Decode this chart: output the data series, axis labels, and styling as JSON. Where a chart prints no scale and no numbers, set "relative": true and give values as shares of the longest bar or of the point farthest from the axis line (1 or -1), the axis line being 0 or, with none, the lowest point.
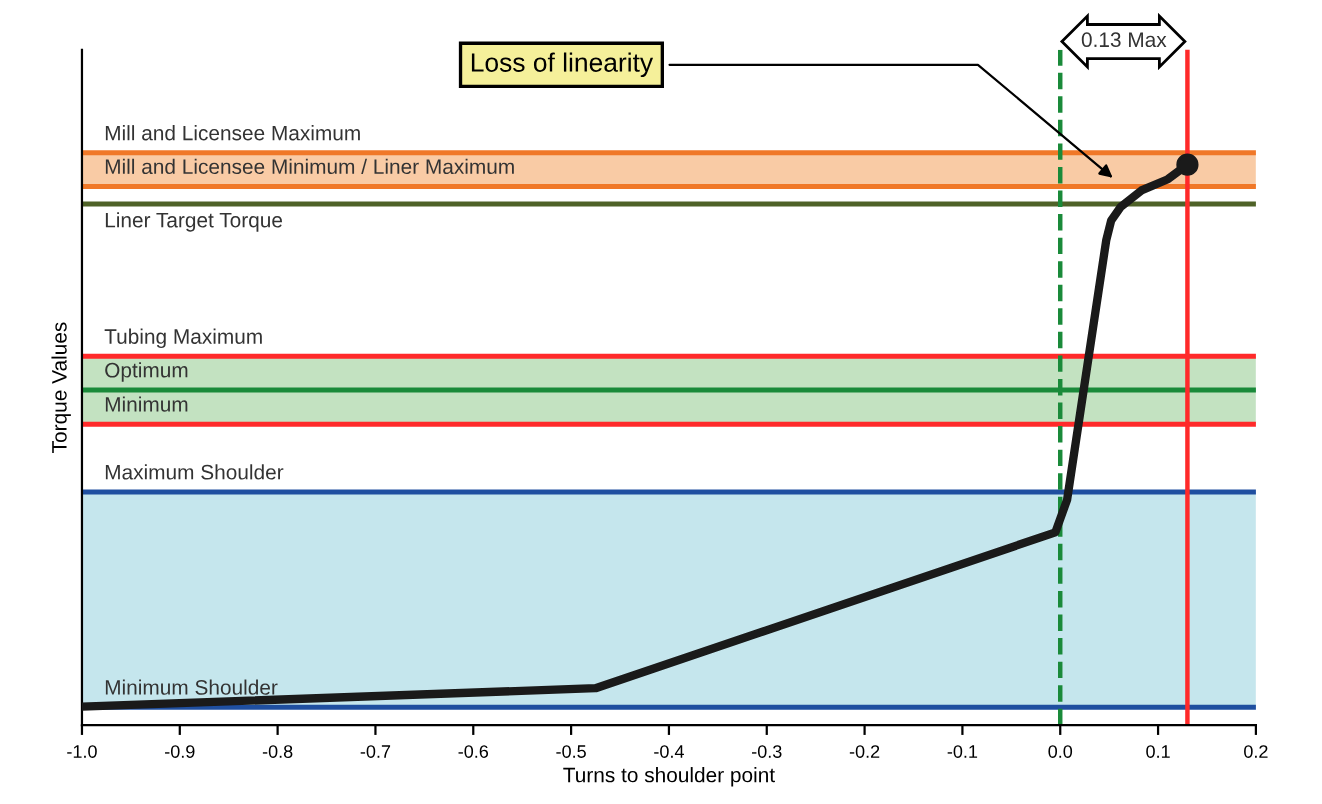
{
  "chart_data": {
    "type": "line",
    "relative": true,
    "xlabel": "Turns to shoulder point",
    "ylabel": "Torque Values",
    "xlim": [
      -1.0,
      0.2
    ],
    "xticks": [
      {
        "value": -1.0,
        "label": "-1.0"
      },
      -0.9,
      -0.8,
      -0.7,
      -0.6,
      -0.5,
      -0.4,
      -0.3,
      -0.2,
      -0.1,
      {
        "value": 0,
        "label": "0.0"
      },
      0.1,
      0.2
    ],
    "series": [
      {
        "color": "#1a1a1a",
        "x": [
          -1.0,
          -0.475,
          -0.005,
          0.007,
          0.047,
          0.052,
          0.062,
          0.083,
          0.11,
          0.13
        ],
        "values": [
          0.033,
          0.066,
          0.344,
          0.402,
          0.865,
          0.9,
          0.925,
          0.954,
          0.974,
          1.0
        ]
      }
    ],
    "bands": [
      {
        "axis": "y",
        "from": 0.961,
        "to": 1.021,
        "color": "#f9cba5"
      },
      {
        "axis": "y",
        "from": 0.537,
        "to": 0.658,
        "color": "#c3e2c1"
      },
      {
        "axis": "y",
        "from": 0.032,
        "to": 0.416,
        "color": "#c5e6ed"
      }
    ],
    "ref_lines": [
      {
        "axis": "y",
        "value": 1.021,
        "label": "Mill and Licensee Maximum",
        "color": "#f07828"
      },
      {
        "axis": "y",
        "value": 0.961,
        "label": "Mill and Licensee Minimum / Liner Maximum",
        "color": "#f07828"
      },
      {
        "axis": "y",
        "value": 0.93,
        "label": "Liner Target Torque",
        "color": "#4f6228"
      },
      {
        "axis": "y",
        "value": 0.658,
        "label": "Tubing Maximum",
        "color": "#ff2a2a"
      },
      {
        "axis": "y",
        "value": 0.598,
        "label": "Optimum",
        "color": "#1a8a3a"
      },
      {
        "axis": "y",
        "value": 0.537,
        "label": "Minimum",
        "color": "#ff2a2a"
      },
      {
        "axis": "y",
        "value": 0.416,
        "label": "Maximum Shoulder",
        "color": "#1f4fa0"
      },
      {
        "axis": "y",
        "value": 0.032,
        "label": "Minimum Shoulder",
        "color": "#1f4fa0"
      },
      {
        "axis": "x",
        "value": 0.0,
        "color": "#1a8a3a",
        "line_style": "dashed"
      },
      {
        "axis": "x",
        "value": 0.13,
        "color": "#ff2a2a"
      }
    ],
    "annotations": [
      {
        "text": "Loss of linearity",
        "x": 0.058,
        "y": 0.97
      },
      "0.13 Max"
    ],
    "marker": "none",
    "grid": false,
    "legend": false
  }
}
